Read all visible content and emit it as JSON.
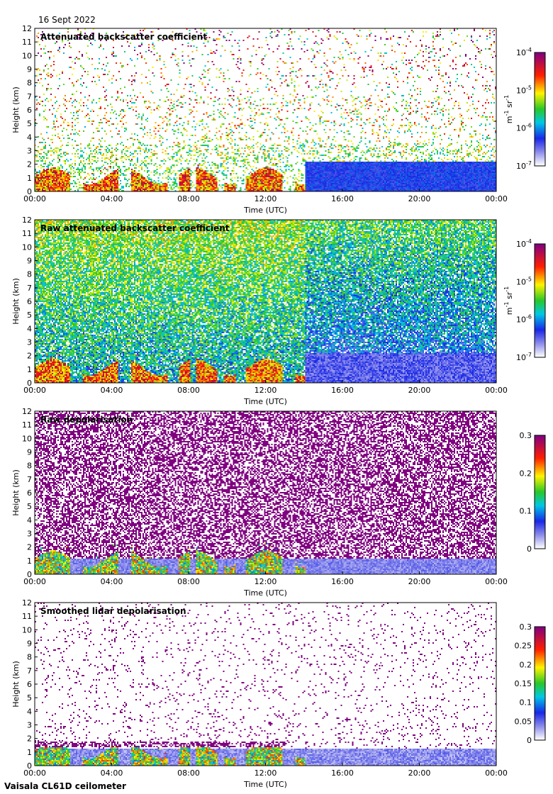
{
  "header": {
    "date": "16 Sept 2022"
  },
  "footer": {
    "instrument": "Vaisala CL61D ceilometer"
  },
  "chart_data": [
    {
      "type": "heatmap",
      "title": "Attenuated backscatter coefficient",
      "xlabel": "Time (UTC)",
      "ylabel": "Height (km)",
      "x_ticks": [
        "00:00",
        "04:00",
        "08:00",
        "12:00",
        "16:00",
        "20:00",
        "00:00"
      ],
      "y_ticks": [
        "0",
        "1",
        "2",
        "3",
        "4",
        "5",
        "6",
        "7",
        "8",
        "9",
        "10",
        "11",
        "12"
      ],
      "ylim": [
        0,
        12
      ],
      "xlim_hours": [
        0,
        24
      ],
      "colorbar": {
        "scale": "log",
        "range": [
          1e-07,
          0.0001
        ],
        "tick_bases": [
          "10",
          "10",
          "10",
          "10"
        ],
        "tick_exps": [
          "-7",
          "-6",
          "-5",
          "-4"
        ],
        "tick_values": [
          1e-07,
          1e-06,
          1e-05,
          0.0001
        ],
        "unit_parts": [
          "m",
          "-1",
          " sr",
          "-1"
        ]
      },
      "pattern": "sparse-signal"
    },
    {
      "type": "heatmap",
      "title": "Raw attenuated backscatter coefficient",
      "xlabel": "Time (UTC)",
      "ylabel": "Height (km)",
      "x_ticks": [
        "00:00",
        "04:00",
        "08:00",
        "12:00",
        "16:00",
        "20:00",
        "00:00"
      ],
      "y_ticks": [
        "0",
        "1",
        "2",
        "3",
        "4",
        "5",
        "6",
        "7",
        "8",
        "9",
        "10",
        "11",
        "12"
      ],
      "ylim": [
        0,
        12
      ],
      "xlim_hours": [
        0,
        24
      ],
      "colorbar": {
        "scale": "log",
        "range": [
          1e-07,
          0.0001
        ],
        "tick_bases": [
          "10",
          "10",
          "10",
          "10"
        ],
        "tick_exps": [
          "-7",
          "-6",
          "-5",
          "-4"
        ],
        "tick_values": [
          1e-07,
          1e-06,
          1e-05,
          0.0001
        ],
        "unit_parts": [
          "m",
          "-1",
          " sr",
          "-1"
        ]
      },
      "pattern": "dense-noise"
    },
    {
      "type": "heatmap",
      "title": "Raw depolarisation",
      "xlabel": "Time (UTC)",
      "ylabel": "Height (km)",
      "x_ticks": [
        "00:00",
        "04:00",
        "08:00",
        "12:00",
        "16:00",
        "20:00",
        "00:00"
      ],
      "y_ticks": [
        "0",
        "1",
        "2",
        "3",
        "4",
        "5",
        "6",
        "7",
        "8",
        "9",
        "10",
        "11",
        "12"
      ],
      "ylim": [
        0,
        12
      ],
      "xlim_hours": [
        0,
        24
      ],
      "colorbar": {
        "scale": "linear",
        "range": [
          0,
          0.3
        ],
        "tick_labels": [
          "0",
          "0.1",
          "0.2",
          "0.3"
        ],
        "tick_values": [
          0,
          0.1,
          0.2,
          0.3
        ]
      },
      "pattern": "depol-raw"
    },
    {
      "type": "heatmap",
      "title": "Smoothed lidar depolarisation",
      "xlabel": "Time (UTC)",
      "ylabel": "Height (km)",
      "x_ticks": [
        "00:00",
        "04:00",
        "08:00",
        "12:00",
        "16:00",
        "20:00",
        "00:00"
      ],
      "y_ticks": [
        "0",
        "1",
        "2",
        "3",
        "4",
        "5",
        "6",
        "7",
        "8",
        "9",
        "10",
        "11",
        "12"
      ],
      "ylim": [
        0,
        12
      ],
      "xlim_hours": [
        0,
        24
      ],
      "colorbar": {
        "scale": "linear",
        "range": [
          0,
          0.3
        ],
        "tick_labels": [
          "0",
          "0.05",
          "0.1",
          "0.15",
          "0.2",
          "0.25",
          "0.3"
        ],
        "tick_values": [
          0,
          0.05,
          0.1,
          0.15,
          0.2,
          0.25,
          0.3
        ]
      },
      "pattern": "depol-smooth"
    }
  ]
}
